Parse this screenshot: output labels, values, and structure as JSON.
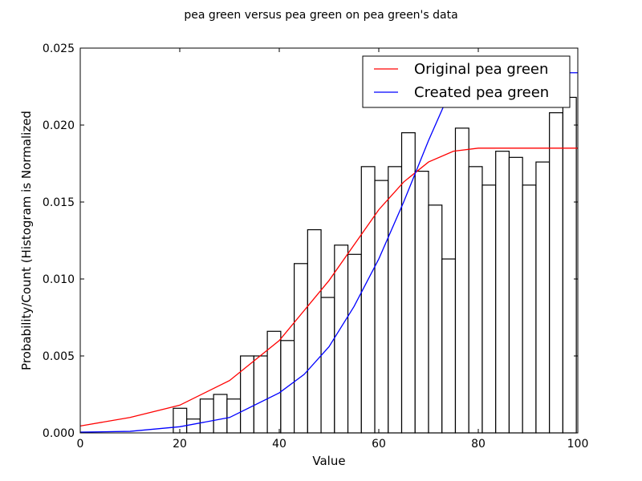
{
  "chart_data": {
    "type": "bar",
    "title": "pea green versus pea green on pea green's data",
    "xlabel": "Value",
    "ylabel": "Probability/Count (Histogram is Normalized",
    "xlim": [
      0,
      100
    ],
    "ylim": [
      0,
      0.025
    ],
    "grid": false,
    "legend_position": "top-right",
    "x_ticks": [
      "0",
      "20",
      "40",
      "60",
      "80",
      "100"
    ],
    "y_ticks": [
      "0.000",
      "0.005",
      "0.010",
      "0.015",
      "0.020",
      "0.025"
    ],
    "histogram": {
      "bin_width": 2.7,
      "bin_starts": [
        18.7,
        21.4,
        24.1,
        26.8,
        29.5,
        32.2,
        34.9,
        37.6,
        40.3,
        43.0,
        45.7,
        48.4,
        51.1,
        53.8,
        56.5,
        59.2,
        61.9,
        64.6,
        67.3,
        70.0,
        72.7,
        75.4,
        78.1,
        80.8,
        83.5,
        86.2,
        88.9,
        91.6,
        94.3,
        97.0
      ],
      "values": [
        0.0016,
        0.0009,
        0.0022,
        0.0025,
        0.0022,
        0.005,
        0.005,
        0.0066,
        0.006,
        0.011,
        0.0132,
        0.0088,
        0.0122,
        0.0116,
        0.0173,
        0.0164,
        0.0173,
        0.0195,
        0.017,
        0.0148,
        0.0113,
        0.0198,
        0.0173,
        0.0161,
        0.0183,
        0.0179,
        0.0161,
        0.0176,
        0.0208,
        0.0218
      ]
    },
    "series": [
      {
        "name": "Original pea green",
        "color": "#ff0000",
        "x": [
          0,
          10,
          20,
          30,
          40,
          50,
          55,
          60,
          65,
          70,
          75,
          80,
          85,
          90,
          100
        ],
        "y": [
          0.00045,
          0.001,
          0.0018,
          0.0034,
          0.006,
          0.0099,
          0.0122,
          0.0145,
          0.0163,
          0.0176,
          0.0183,
          0.0185,
          0.0185,
          0.0185,
          0.0185
        ]
      },
      {
        "name": "Created pea green",
        "color": "#0000ff",
        "x": [
          0,
          10,
          20,
          30,
          40,
          45,
          50,
          55,
          60,
          65,
          70,
          73,
          75,
          80,
          90,
          100
        ],
        "y": [
          5e-05,
          0.0001,
          0.0004,
          0.001,
          0.0026,
          0.0038,
          0.0056,
          0.0082,
          0.0113,
          0.015,
          0.019,
          0.0212,
          0.0222,
          0.0234,
          0.0234,
          0.0234
        ]
      }
    ]
  }
}
